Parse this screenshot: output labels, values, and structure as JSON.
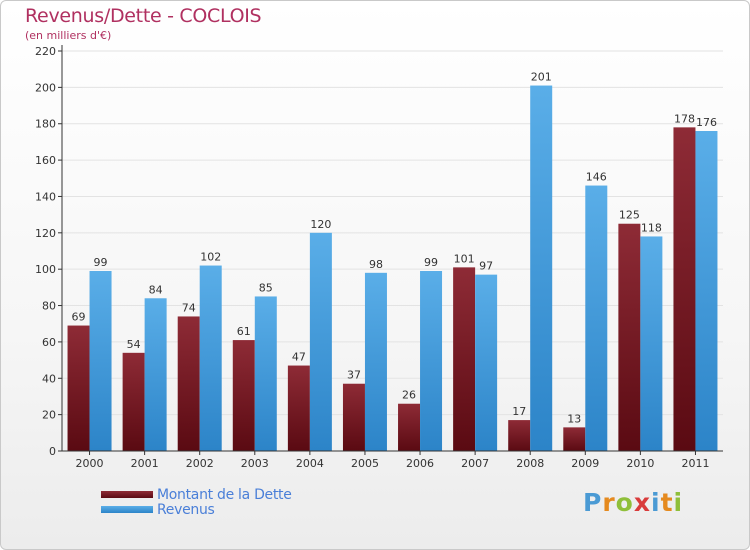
{
  "chart_data": {
    "type": "bar",
    "title": "Revenus/Dette - COCLOIS",
    "subtitle": "(en milliers d'€)",
    "categories": [
      "2000",
      "2001",
      "2002",
      "2003",
      "2004",
      "2005",
      "2006",
      "2007",
      "2008",
      "2009",
      "2010",
      "2011"
    ],
    "series": [
      {
        "name": "Montant de la Dette",
        "color": "#7a1a24",
        "values": [
          69,
          54,
          74,
          61,
          47,
          37,
          26,
          101,
          17,
          13,
          125,
          178
        ]
      },
      {
        "name": "Revenus",
        "color": "#3d9ee0",
        "values": [
          99,
          84,
          102,
          85,
          120,
          98,
          99,
          97,
          201,
          146,
          118,
          176
        ]
      }
    ],
    "ylim": [
      0,
      220
    ],
    "yticks": [
      0,
      20,
      40,
      60,
      80,
      100,
      120,
      140,
      160,
      180,
      200,
      220
    ],
    "grid": true,
    "legend_position": "bottom-left"
  },
  "brand": {
    "letters": [
      "P",
      "r",
      "o",
      "x",
      "i",
      "t",
      "i"
    ]
  }
}
